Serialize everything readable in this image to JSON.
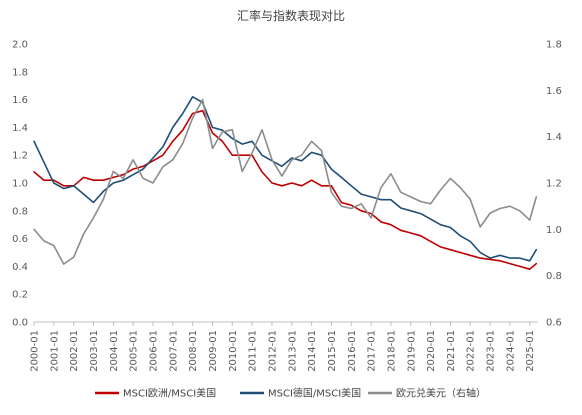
{
  "chart_data": {
    "type": "line",
    "title": "汇率与指数表现对比",
    "x": [
      "2000-01",
      "2000-07",
      "2001-01",
      "2001-07",
      "2002-01",
      "2002-07",
      "2003-01",
      "2003-07",
      "2004-01",
      "2004-07",
      "2005-01",
      "2005-07",
      "2006-01",
      "2006-07",
      "2007-01",
      "2007-07",
      "2008-01",
      "2008-07",
      "2009-01",
      "2009-07",
      "2010-01",
      "2010-07",
      "2011-01",
      "2011-07",
      "2012-01",
      "2012-07",
      "2013-01",
      "2013-07",
      "2014-01",
      "2014-07",
      "2015-01",
      "2015-07",
      "2016-01",
      "2016-07",
      "2017-01",
      "2017-07",
      "2018-01",
      "2018-07",
      "2019-01",
      "2019-07",
      "2020-01",
      "2020-07",
      "2021-01",
      "2021-07",
      "2022-01",
      "2022-07",
      "2023-01",
      "2023-07",
      "2024-01",
      "2024-07",
      "2025-01",
      "2025-05"
    ],
    "x_ticks": [
      "2000-01",
      "2001-01",
      "2002-01",
      "2003-01",
      "2004-01",
      "2005-01",
      "2006-01",
      "2007-01",
      "2008-01",
      "2009-01",
      "2010-01",
      "2011-01",
      "2012-01",
      "2013-01",
      "2014-01",
      "2015-01",
      "2016-01",
      "2017-01",
      "2018-01",
      "2019-01",
      "2020-01",
      "2021-01",
      "2022-01",
      "2023-01",
      "2024-01",
      "2025-01"
    ],
    "y_left": {
      "ylim": [
        0,
        2.0
      ],
      "ticks": [
        "0.0",
        "0.2",
        "0.4",
        "0.6",
        "0.8",
        "1.0",
        "1.2",
        "1.4",
        "1.6",
        "1.8",
        "2.0"
      ]
    },
    "y_right": {
      "ylim": [
        0.6,
        1.8
      ],
      "ticks": [
        "0.6",
        "0.8",
        "1.0",
        "1.2",
        "1.4",
        "1.6",
        "1.8"
      ]
    },
    "grid": false,
    "legend_position": "bottom",
    "series": [
      {
        "name": "MSCI欧洲/MSCI美国",
        "axis": "left",
        "color": "#c00000",
        "values": [
          1.08,
          1.02,
          1.02,
          0.98,
          0.98,
          1.04,
          1.02,
          1.02,
          1.04,
          1.06,
          1.1,
          1.12,
          1.16,
          1.2,
          1.3,
          1.38,
          1.5,
          1.52,
          1.36,
          1.3,
          1.2,
          1.2,
          1.2,
          1.08,
          1.0,
          0.98,
          1.0,
          0.98,
          1.02,
          0.98,
          0.98,
          0.86,
          0.84,
          0.8,
          0.78,
          0.72,
          0.7,
          0.66,
          0.64,
          0.62,
          0.58,
          0.54,
          0.52,
          0.5,
          0.48,
          0.46,
          0.45,
          0.44,
          0.42,
          0.4,
          0.38,
          0.42
        ]
      },
      {
        "name": "MSCI德国/MSCI美国",
        "axis": "left",
        "color": "#1f4e79",
        "values": [
          1.3,
          1.15,
          1.0,
          0.96,
          0.98,
          0.92,
          0.86,
          0.94,
          1.0,
          1.02,
          1.06,
          1.1,
          1.18,
          1.26,
          1.4,
          1.5,
          1.62,
          1.58,
          1.4,
          1.38,
          1.32,
          1.28,
          1.3,
          1.2,
          1.16,
          1.12,
          1.18,
          1.16,
          1.22,
          1.2,
          1.1,
          1.04,
          0.98,
          0.92,
          0.9,
          0.88,
          0.88,
          0.82,
          0.8,
          0.78,
          0.74,
          0.7,
          0.68,
          0.62,
          0.58,
          0.5,
          0.46,
          0.48,
          0.46,
          0.46,
          0.44,
          0.52
        ]
      },
      {
        "name": "欧元兑美元（右轴）",
        "axis": "right",
        "color": "#8c8c8c",
        "values": [
          1.0,
          0.95,
          0.93,
          0.85,
          0.88,
          0.98,
          1.05,
          1.13,
          1.25,
          1.22,
          1.3,
          1.22,
          1.2,
          1.27,
          1.3,
          1.37,
          1.48,
          1.56,
          1.35,
          1.42,
          1.43,
          1.25,
          1.33,
          1.43,
          1.3,
          1.23,
          1.3,
          1.32,
          1.38,
          1.34,
          1.16,
          1.1,
          1.09,
          1.11,
          1.05,
          1.18,
          1.24,
          1.16,
          1.14,
          1.12,
          1.11,
          1.17,
          1.22,
          1.18,
          1.13,
          1.01,
          1.07,
          1.09,
          1.1,
          1.08,
          1.04,
          1.14
        ]
      }
    ]
  }
}
